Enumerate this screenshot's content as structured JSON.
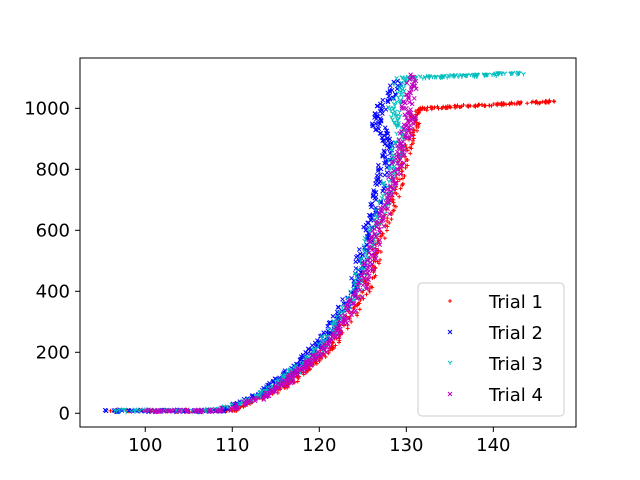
{
  "chart_data": {
    "type": "scatter",
    "title": "",
    "xlabel": "",
    "ylabel": "",
    "xlim": [
      92.5,
      149.5
    ],
    "ylim": [
      -45,
      1165
    ],
    "xticks": [
      100,
      110,
      120,
      130,
      140
    ],
    "yticks": [
      0,
      200,
      400,
      600,
      800,
      1000
    ],
    "grid": false,
    "legend_position": "lower-right",
    "series": [
      {
        "name": "Trial 1",
        "color": "#ff0000",
        "marker": "+",
        "points": [
          [
            96,
            8
          ],
          [
            100,
            8
          ],
          [
            104,
            8
          ],
          [
            108,
            8
          ],
          [
            110.5,
            8
          ],
          [
            111.5,
            30
          ],
          [
            113.5,
            55
          ],
          [
            115.5,
            78
          ],
          [
            116.5,
            100
          ],
          [
            117.5,
            122
          ],
          [
            118.5,
            145
          ],
          [
            119.5,
            168
          ],
          [
            120.5,
            195
          ],
          [
            121.5,
            230
          ],
          [
            122.5,
            270
          ],
          [
            123.5,
            310
          ],
          [
            124.5,
            360
          ],
          [
            125.5,
            420
          ],
          [
            126,
            470
          ],
          [
            126.5,
            520
          ],
          [
            127,
            580
          ],
          [
            127.8,
            640
          ],
          [
            128.5,
            700
          ],
          [
            129,
            760
          ],
          [
            129.5,
            820
          ],
          [
            130,
            870
          ],
          [
            130.5,
            920
          ],
          [
            131,
            960
          ],
          [
            131.5,
            995
          ],
          [
            133,
            1002
          ],
          [
            135,
            1005
          ],
          [
            137,
            1008
          ],
          [
            139,
            1010
          ],
          [
            141,
            1014
          ],
          [
            143,
            1017
          ],
          [
            145,
            1020
          ],
          [
            147,
            1022
          ]
        ]
      },
      {
        "name": "Trial 2",
        "color": "#0000ff",
        "marker": "x",
        "points": [
          [
            95.5,
            8
          ],
          [
            99,
            8
          ],
          [
            103,
            8
          ],
          [
            106,
            8
          ],
          [
            109,
            8
          ],
          [
            110.5,
            30
          ],
          [
            112.5,
            55
          ],
          [
            114,
            78
          ],
          [
            115,
            100
          ],
          [
            116,
            122
          ],
          [
            117,
            145
          ],
          [
            118,
            168
          ],
          [
            119,
            195
          ],
          [
            120,
            230
          ],
          [
            121,
            270
          ],
          [
            122,
            310
          ],
          [
            123,
            360
          ],
          [
            124,
            420
          ],
          [
            124.5,
            470
          ],
          [
            125,
            520
          ],
          [
            125.5,
            580
          ],
          [
            126,
            640
          ],
          [
            126.5,
            700
          ],
          [
            127,
            760
          ],
          [
            127.5,
            820
          ],
          [
            128,
            870
          ],
          [
            127.5,
            910
          ],
          [
            126.5,
            950
          ],
          [
            127,
            990
          ],
          [
            128,
            1040
          ],
          [
            129,
            1090
          ]
        ]
      },
      {
        "name": "Trial 3",
        "color": "#00bfbf",
        "marker": "1",
        "points": [
          [
            96.5,
            8
          ],
          [
            100,
            8
          ],
          [
            103.5,
            8
          ],
          [
            107,
            8
          ],
          [
            111,
            30
          ],
          [
            113,
            55
          ],
          [
            114.5,
            78
          ],
          [
            115.5,
            100
          ],
          [
            116.5,
            122
          ],
          [
            117.5,
            145
          ],
          [
            118.5,
            168
          ],
          [
            119.5,
            195
          ],
          [
            120.5,
            230
          ],
          [
            121.5,
            270
          ],
          [
            122.5,
            310
          ],
          [
            123.5,
            360
          ],
          [
            124.5,
            420
          ],
          [
            125,
            470
          ],
          [
            125.5,
            520
          ],
          [
            126,
            580
          ],
          [
            126.8,
            640
          ],
          [
            127.5,
            700
          ],
          [
            128,
            760
          ],
          [
            128.5,
            820
          ],
          [
            129,
            870
          ],
          [
            129.5,
            920
          ],
          [
            129,
            960
          ],
          [
            128.5,
            1000
          ],
          [
            129,
            1050
          ],
          [
            129.5,
            1100
          ],
          [
            131,
            1100
          ],
          [
            133,
            1102
          ],
          [
            135,
            1104
          ],
          [
            137,
            1106
          ],
          [
            139,
            1108
          ],
          [
            141,
            1112
          ],
          [
            143,
            1115
          ]
        ]
      },
      {
        "name": "Trial 4",
        "color": "#bf00bf",
        "marker": "x",
        "points": [
          [
            100,
            8
          ],
          [
            103,
            8
          ],
          [
            106,
            8
          ],
          [
            108.5,
            8
          ],
          [
            111.5,
            30
          ],
          [
            113.5,
            55
          ],
          [
            115,
            78
          ],
          [
            116,
            100
          ],
          [
            117,
            122
          ],
          [
            118,
            145
          ],
          [
            119,
            168
          ],
          [
            120,
            195
          ],
          [
            121,
            230
          ],
          [
            122,
            270
          ],
          [
            123,
            310
          ],
          [
            124,
            360
          ],
          [
            125,
            420
          ],
          [
            125.5,
            470
          ],
          [
            126,
            520
          ],
          [
            126.5,
            580
          ],
          [
            127.3,
            640
          ],
          [
            128,
            700
          ],
          [
            128.5,
            760
          ],
          [
            129,
            820
          ],
          [
            129.5,
            870
          ],
          [
            130,
            920
          ],
          [
            130.5,
            960
          ],
          [
            130,
            1000
          ],
          [
            130.5,
            1050
          ],
          [
            130.5,
            1110
          ]
        ]
      }
    ]
  }
}
